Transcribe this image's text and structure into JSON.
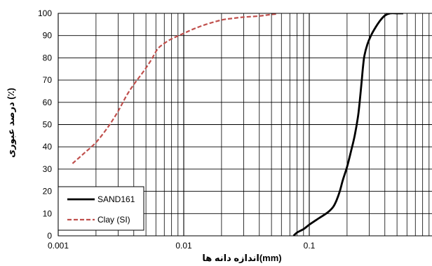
{
  "chart_data": {
    "type": "line",
    "title": "",
    "xlabel": "اندازه دانه ها(mm)",
    "ylabel": "درصد عبوری (٪)",
    "x_scale": "log",
    "xlim": [
      0.001,
      1
    ],
    "ylim": [
      0,
      100
    ],
    "x_ticks": [
      0.001,
      0.01,
      0.1
    ],
    "x_tick_labels": [
      "0.001",
      "0.01",
      "0.1"
    ],
    "y_ticks": [
      0,
      10,
      20,
      30,
      40,
      50,
      60,
      70,
      80,
      90,
      100
    ],
    "y_tick_labels": [
      "0",
      "10",
      "20",
      "30",
      "40",
      "50",
      "60",
      "70",
      "80",
      "90",
      "100"
    ],
    "grid": true,
    "legend_position": "bottom-left",
    "series": [
      {
        "name": "SAND161",
        "color": "#000000",
        "line_style": "solid",
        "x": [
          0.075,
          0.08,
          0.09,
          0.1,
          0.12,
          0.14,
          0.155,
          0.165,
          0.175,
          0.185,
          0.2,
          0.215,
          0.23,
          0.245,
          0.255,
          0.262,
          0.268,
          0.275,
          0.29,
          0.31,
          0.34,
          0.37,
          0.4,
          0.44,
          0.5,
          0.56
        ],
        "y": [
          0,
          1.5,
          3,
          5,
          8,
          10.5,
          13,
          16,
          20,
          25,
          31,
          38,
          45,
          54,
          63,
          70,
          76,
          81,
          86,
          90,
          94,
          97,
          99,
          100,
          100,
          100
        ]
      },
      {
        "name": "Clay (SI)",
        "color": "#c0504d",
        "line_style": "dashed",
        "x": [
          0.0013,
          0.0016,
          0.002,
          0.0025,
          0.003,
          0.0035,
          0.004,
          0.0048,
          0.0055,
          0.0062,
          0.007,
          0.008,
          0.01,
          0.012,
          0.015,
          0.02,
          0.025,
          0.03,
          0.04,
          0.05,
          0.055
        ],
        "y": [
          32.5,
          37,
          42,
          49,
          56,
          63,
          68,
          74,
          79,
          84,
          86.5,
          88.5,
          91,
          93,
          95,
          97,
          97.8,
          98.3,
          98.8,
          99.5,
          99.7
        ]
      }
    ]
  }
}
